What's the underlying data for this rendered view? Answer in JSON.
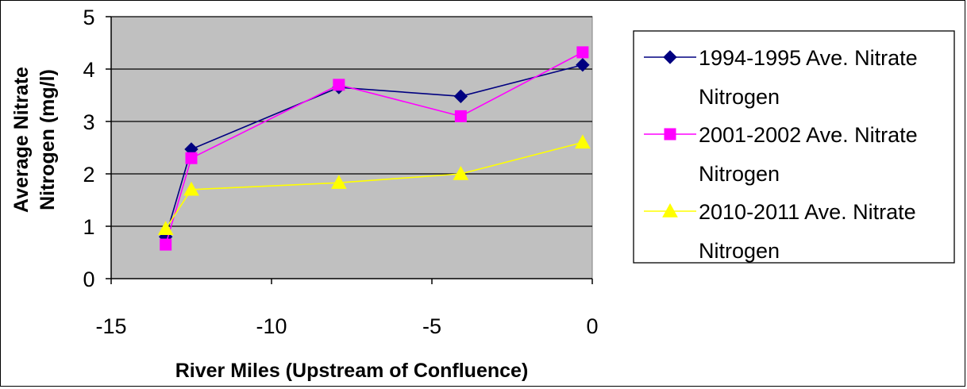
{
  "chart_data": {
    "type": "line",
    "title": "",
    "xlabel": "River Miles (Upstream of Confluence)",
    "ylabel_lines": [
      "Average Nitrate",
      "Nitrogen (mg/l)"
    ],
    "xlim": [
      -15,
      0
    ],
    "ylim": [
      0,
      5
    ],
    "xticks": [
      -15,
      -10,
      -5,
      0
    ],
    "yticks": [
      0,
      1,
      2,
      3,
      4,
      5
    ],
    "grid": "horizontal",
    "plot_background": "#c0c0c0",
    "legend_position": "right",
    "series": [
      {
        "name": "1994-1995 Ave. Nitrate Nitrogen",
        "name_lines": [
          "1994-1995 Ave. Nitrate",
          "Nitrogen"
        ],
        "color": "#000080",
        "marker": "diamond",
        "x": [
          -13.3,
          -12.5,
          -7.9,
          -4.1,
          -0.3
        ],
        "y": [
          0.8,
          2.47,
          3.65,
          3.48,
          4.08
        ]
      },
      {
        "name": "2001-2002 Ave. Nitrate Nitrogen",
        "name_lines": [
          "2001-2002 Ave. Nitrate",
          "Nitrogen"
        ],
        "color": "#ff00ff",
        "marker": "square",
        "x": [
          -13.3,
          -12.5,
          -7.9,
          -4.1,
          -0.3
        ],
        "y": [
          0.65,
          2.3,
          3.7,
          3.1,
          4.32
        ]
      },
      {
        "name": "2010-2011 Ave. Nitrate Nitrogen",
        "name_lines": [
          "2010-2011 Ave. Nitrate",
          "Nitrogen"
        ],
        "color": "#ffff00",
        "marker": "triangle",
        "x": [
          -13.3,
          -12.5,
          -7.9,
          -4.1,
          -0.3
        ],
        "y": [
          0.95,
          1.7,
          1.83,
          2.0,
          2.6
        ]
      }
    ]
  }
}
